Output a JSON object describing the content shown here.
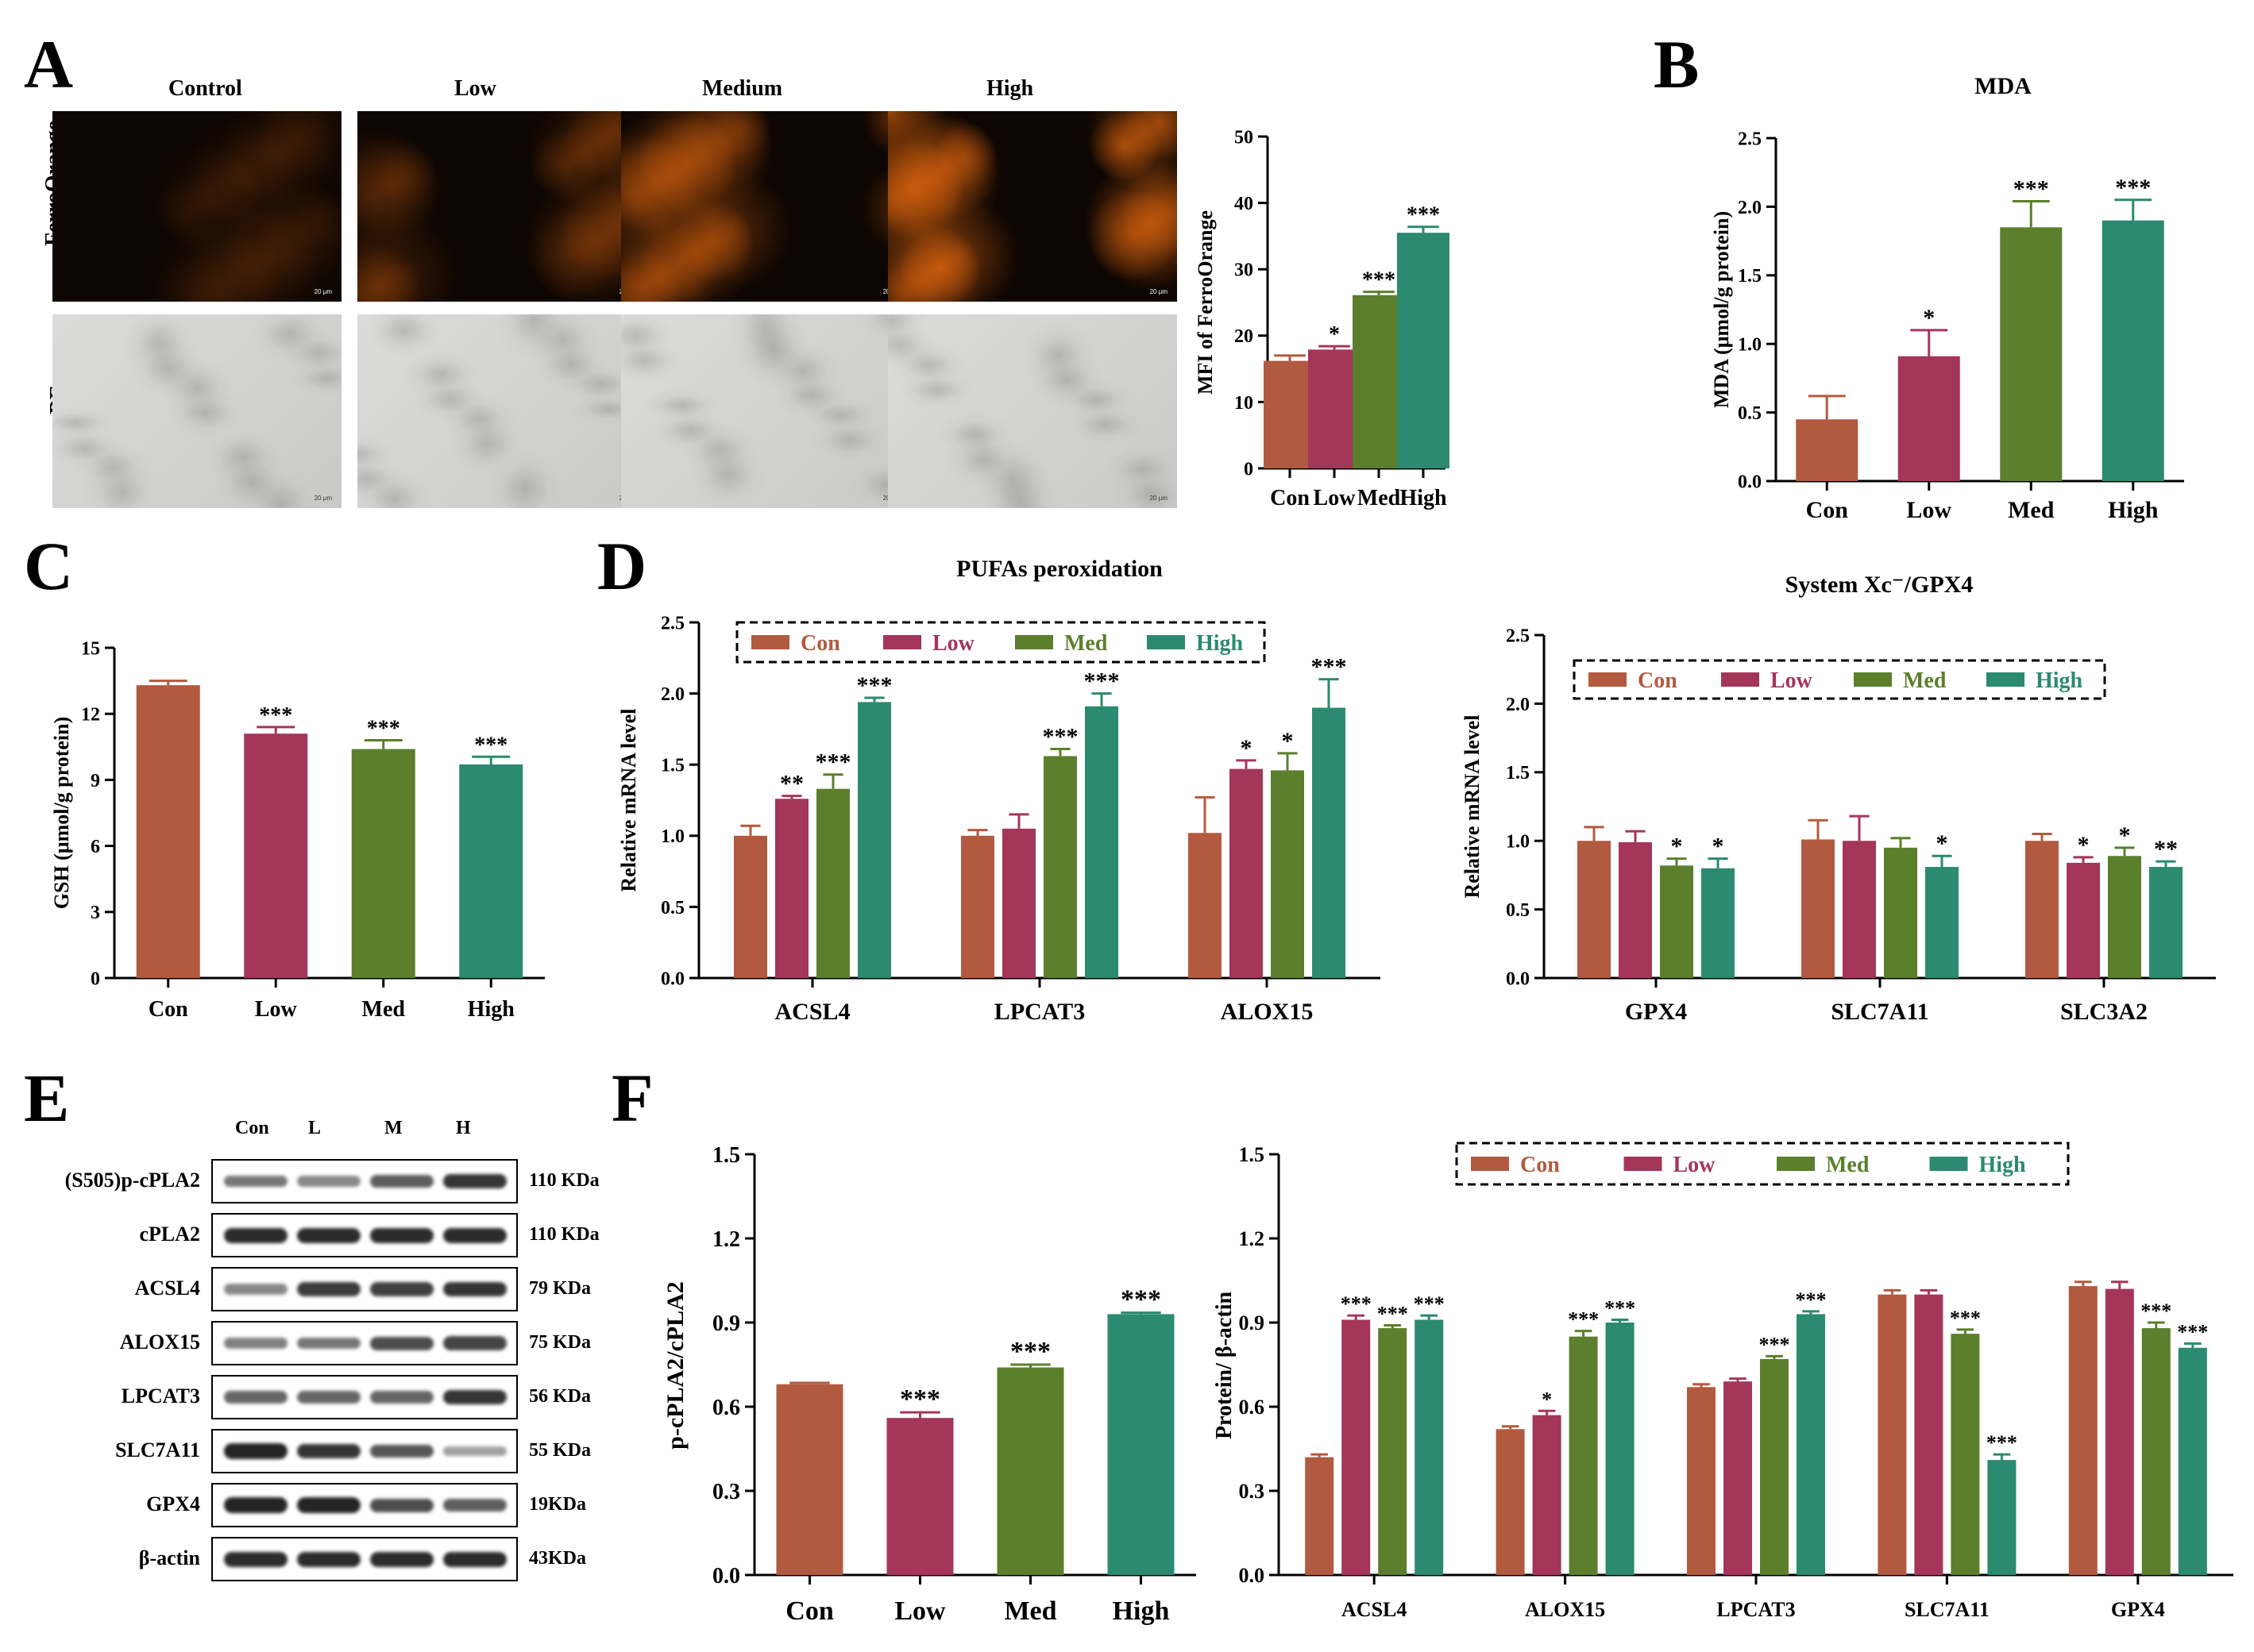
{
  "panel_labels": {
    "a": "A",
    "b": "B",
    "c": "C",
    "d": "D",
    "e": "E",
    "f": "F"
  },
  "colors": {
    "con": "#b25a3f",
    "low": "#a4365a",
    "med": "#5b7f2c",
    "high": "#2b8a6f",
    "fluor": "#e0660f"
  },
  "panel_a": {
    "columns": [
      "Control",
      "Low",
      "Medium",
      "High"
    ],
    "rows": [
      "FerroOrange",
      "BF"
    ],
    "intensity": [
      0.12,
      0.28,
      0.48,
      0.72
    ],
    "scale_bar": "20 μm"
  },
  "panel_e": {
    "lanes": [
      "Con",
      "L",
      "M",
      "H"
    ],
    "bands": [
      {
        "name": "(S505)p-cPLA2",
        "size": "110 KDa",
        "intensity": [
          0.45,
          0.35,
          0.6,
          0.85
        ]
      },
      {
        "name": "cPLA2",
        "size": "110 KDa",
        "intensity": [
          0.9,
          0.9,
          0.9,
          0.9
        ]
      },
      {
        "name": "ACSL4",
        "size": "79 KDa",
        "intensity": [
          0.35,
          0.8,
          0.78,
          0.85
        ]
      },
      {
        "name": "ALOX15",
        "size": "75 KDa",
        "intensity": [
          0.4,
          0.45,
          0.7,
          0.75
        ]
      },
      {
        "name": "LPCAT3",
        "size": "56 KDa",
        "intensity": [
          0.55,
          0.55,
          0.55,
          0.85
        ]
      },
      {
        "name": "SLC7A11",
        "size": "55 KDa",
        "intensity": [
          0.95,
          0.85,
          0.65,
          0.2
        ]
      },
      {
        "name": "GPX4",
        "size": "19KDa",
        "intensity": [
          0.95,
          0.95,
          0.7,
          0.6
        ]
      },
      {
        "name": "β-actin",
        "size": "43KDa",
        "intensity": [
          0.9,
          0.9,
          0.9,
          0.9
        ]
      }
    ]
  },
  "chart_data": [
    {
      "id": "a_mfi",
      "type": "bar",
      "title": "",
      "xlabel": "",
      "ylabel": "MFI of FerroOrange",
      "categories": [
        "Con",
        "Low",
        "Med",
        "High"
      ],
      "values": [
        16.2,
        17.9,
        26.1,
        35.5
      ],
      "errors": [
        0.8,
        0.5,
        0.5,
        0.9
      ],
      "sig": [
        "",
        "*",
        "***",
        "***"
      ],
      "ylim": [
        0,
        50
      ],
      "yticks": [
        "0",
        "10",
        "20",
        "30",
        "40",
        "50"
      ],
      "tick_step": 10
    },
    {
      "id": "b_mda",
      "type": "bar",
      "title": "MDA",
      "xlabel": "",
      "ylabel": "MDA (μmol/g protein)",
      "categories": [
        "Con",
        "Low",
        "Med",
        "High"
      ],
      "values": [
        0.45,
        0.91,
        1.85,
        1.9
      ],
      "errors": [
        0.17,
        0.19,
        0.19,
        0.15
      ],
      "sig": [
        "",
        "*",
        "***",
        "***"
      ],
      "ylim": [
        0,
        2.5
      ],
      "yticks": [
        "0.0",
        "0.5",
        "1.0",
        "1.5",
        "2.0",
        "2.5"
      ],
      "tick_step": 0.5
    },
    {
      "id": "c_gsh",
      "type": "bar",
      "title": "",
      "xlabel": "",
      "ylabel": "GSH (μmol/g protein)",
      "categories": [
        "Con",
        "Low",
        "Med",
        "High"
      ],
      "values": [
        13.3,
        11.1,
        10.4,
        9.7
      ],
      "errors": [
        0.2,
        0.3,
        0.4,
        0.35
      ],
      "sig": [
        "",
        "***",
        "***",
        "***"
      ],
      "ylim": [
        0,
        15
      ],
      "yticks": [
        "0",
        "3",
        "6",
        "9",
        "12",
        "15"
      ],
      "tick_step": 3
    },
    {
      "id": "d1_pufa",
      "type": "bar",
      "title": "PUFAs  peroxidation",
      "xlabel": "",
      "ylabel": "Relative mRNA level",
      "categories": [
        "ACSL4",
        "LPCAT3",
        "ALOX15"
      ],
      "legend": [
        "Con",
        "Low",
        "Med",
        "High"
      ],
      "series": [
        {
          "name": "Con",
          "values": [
            1.0,
            1.0,
            1.02
          ],
          "errors": [
            0.07,
            0.04,
            0.25
          ],
          "sig": [
            "",
            "",
            ""
          ]
        },
        {
          "name": "Low",
          "values": [
            1.26,
            1.05,
            1.47
          ],
          "errors": [
            0.02,
            0.1,
            0.06
          ],
          "sig": [
            "**",
            "",
            "*"
          ]
        },
        {
          "name": "Med",
          "values": [
            1.33,
            1.56,
            1.46
          ],
          "errors": [
            0.1,
            0.05,
            0.12
          ],
          "sig": [
            "***",
            "***",
            "*"
          ]
        },
        {
          "name": "High",
          "values": [
            1.94,
            1.91,
            1.9
          ],
          "errors": [
            0.03,
            0.09,
            0.2
          ],
          "sig": [
            "***",
            "***",
            "***"
          ]
        }
      ],
      "ylim": [
        0,
        2.5
      ],
      "yticks": [
        "0.0",
        "0.5",
        "1.0",
        "1.5",
        "2.0",
        "2.5"
      ],
      "tick_step": 0.5
    },
    {
      "id": "d2_xc",
      "type": "bar",
      "title": "System Xc⁻/GPX4",
      "xlabel": "",
      "ylabel": "Relative mRNA level",
      "categories": [
        "GPX4",
        "SLC7A11",
        "SLC3A2"
      ],
      "legend": [
        "Con",
        "Low",
        "Med",
        "High"
      ],
      "series": [
        {
          "name": "Con",
          "values": [
            1.0,
            1.01,
            1.0
          ],
          "errors": [
            0.1,
            0.14,
            0.05
          ],
          "sig": [
            "",
            "",
            ""
          ]
        },
        {
          "name": "Low",
          "values": [
            0.99,
            1.0,
            0.84
          ],
          "errors": [
            0.08,
            0.18,
            0.04
          ],
          "sig": [
            "",
            "",
            "*"
          ]
        },
        {
          "name": "Med",
          "values": [
            0.82,
            0.95,
            0.89
          ],
          "errors": [
            0.05,
            0.07,
            0.06
          ],
          "sig": [
            "*",
            "",
            "*"
          ]
        },
        {
          "name": "High",
          "values": [
            0.8,
            0.81,
            0.81
          ],
          "errors": [
            0.07,
            0.08,
            0.04
          ],
          "sig": [
            "*",
            "*",
            "**"
          ]
        }
      ],
      "ylim": [
        0,
        2.5
      ],
      "yticks": [
        "0.0",
        "0.5",
        "1.0",
        "1.5",
        "2.0",
        "2.5"
      ],
      "tick_step": 0.5
    },
    {
      "id": "f1_ratio",
      "type": "bar",
      "title": "",
      "xlabel": "",
      "ylabel": "p-cPLA2/cPLA2",
      "categories": [
        "Con",
        "Low",
        "Med",
        "High"
      ],
      "values": [
        0.68,
        0.56,
        0.74,
        0.93
      ],
      "errors": [
        0.005,
        0.02,
        0.01,
        0.005
      ],
      "sig": [
        "",
        "***",
        "***",
        "***"
      ],
      "ylim": [
        0,
        1.5
      ],
      "yticks": [
        "0.0",
        "0.3",
        "0.6",
        "0.9",
        "1.2",
        "1.5"
      ],
      "tick_step": 0.3
    },
    {
      "id": "f2_protein",
      "type": "bar",
      "title": "",
      "xlabel": "",
      "ylabel": "Protein/ β-actin",
      "categories": [
        "ACSL4",
        "ALOX15",
        "LPCAT3",
        "SLC7A11",
        "GPX4"
      ],
      "legend": [
        "Con",
        "Low",
        "Med",
        "High"
      ],
      "series": [
        {
          "name": "Con",
          "values": [
            0.42,
            0.52,
            0.67,
            1.0,
            1.03
          ],
          "errors": [
            0.01,
            0.01,
            0.01,
            0.015,
            0.015
          ],
          "sig": [
            "",
            "",
            "",
            "",
            ""
          ]
        },
        {
          "name": "Low",
          "values": [
            0.91,
            0.57,
            0.69,
            1.0,
            1.02
          ],
          "errors": [
            0.015,
            0.015,
            0.01,
            0.015,
            0.025
          ],
          "sig": [
            "***",
            "*",
            "",
            "",
            ""
          ]
        },
        {
          "name": "Med",
          "values": [
            0.88,
            0.85,
            0.77,
            0.86,
            0.88
          ],
          "errors": [
            0.01,
            0.02,
            0.01,
            0.015,
            0.02
          ],
          "sig": [
            "***",
            "***",
            "***",
            "***",
            "***"
          ]
        },
        {
          "name": "High",
          "values": [
            0.91,
            0.9,
            0.93,
            0.41,
            0.81
          ],
          "errors": [
            0.015,
            0.01,
            0.01,
            0.02,
            0.015
          ],
          "sig": [
            "***",
            "***",
            "***",
            "***",
            "***"
          ]
        }
      ],
      "ylim": [
        0,
        1.5
      ],
      "yticks": [
        "0.0",
        "0.3",
        "0.6",
        "0.9",
        "1.2",
        "1.5"
      ],
      "tick_step": 0.3
    }
  ]
}
